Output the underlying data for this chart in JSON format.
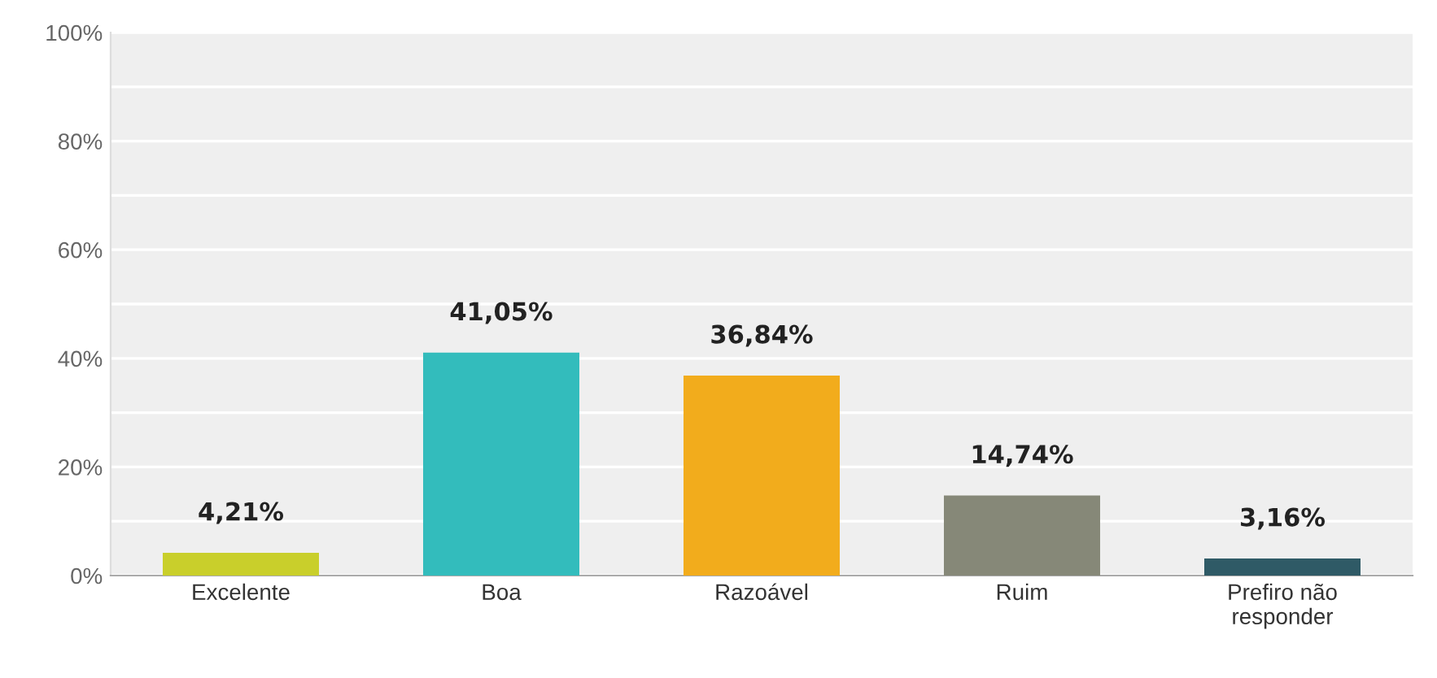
{
  "chart_data": {
    "type": "bar",
    "categories": [
      "Excelente",
      "Boa",
      "Razoável",
      "Ruim",
      "Prefiro não\nresponder"
    ],
    "values": [
      4.21,
      41.05,
      36.84,
      14.74,
      3.16
    ],
    "colors": [
      "#c9cf2b",
      "#33bcbc",
      "#f2ac1c",
      "#868878",
      "#2f5a66"
    ],
    "value_labels": [
      "4,21%",
      "41,05%",
      "36,84%",
      "14,74%",
      "3,16%"
    ],
    "ylim": [
      0,
      100
    ],
    "yticks": [
      {
        "value": 0,
        "label": "0%"
      },
      {
        "value": 10,
        "label": null
      },
      {
        "value": 20,
        "label": "20%"
      },
      {
        "value": 30,
        "label": null
      },
      {
        "value": 40,
        "label": "40%"
      },
      {
        "value": 50,
        "label": null
      },
      {
        "value": 60,
        "label": "60%"
      },
      {
        "value": 70,
        "label": null
      },
      {
        "value": 80,
        "label": "80%"
      },
      {
        "value": 90,
        "label": null
      },
      {
        "value": 100,
        "label": "100%"
      }
    ],
    "grid": "y"
  }
}
